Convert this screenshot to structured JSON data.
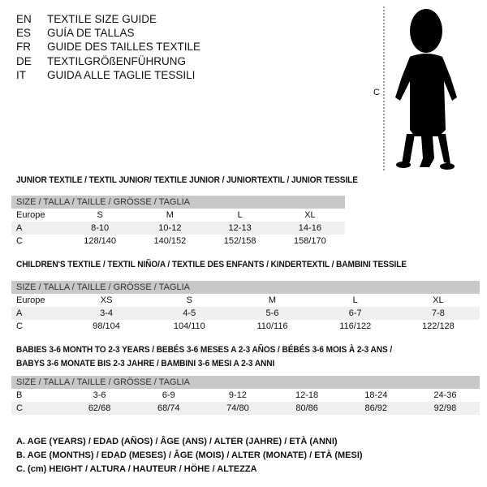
{
  "languages": [
    {
      "code": "EN",
      "title": "TEXTILE SIZE GUIDE"
    },
    {
      "code": "ES",
      "title": "GUÍA DE TALLAS"
    },
    {
      "code": "FR",
      "title": "GUIDE DES TAILLES TEXTILE"
    },
    {
      "code": "DE",
      "title": "TEXTILGRÖßENFÜHRUNG"
    },
    {
      "code": "IT",
      "title": "GUIDA ALLE TAGLIE TESSILI"
    }
  ],
  "figure": {
    "label": "C",
    "icon": "child-silhouette"
  },
  "size_header": "SIZE / TALLA / TAILLE / GRÖSSE / TAGLIA",
  "junior": {
    "title": "JUNIOR TEXTILE / TEXTIL JUNIOR/ TEXTILE JUNIOR / JUNIORTEXTIL / JUNIOR TESSILE",
    "rows": [
      {
        "label": "Europe",
        "cells": [
          "S",
          "M",
          "L",
          "XL"
        ]
      },
      {
        "label": "A",
        "cells": [
          "8-10",
          "10-12",
          "12-13",
          "14-16"
        ]
      },
      {
        "label": "C",
        "cells": [
          "128/140",
          "140/152",
          "152/158",
          "158/170"
        ]
      }
    ]
  },
  "children": {
    "title": "CHILDREN'S TEXTILE / TEXTIL NIÑO/A / TEXTILE DES ENFANTS / KINDERTEXTIL / BAMBINI TESSILE",
    "rows": [
      {
        "label": "Europe",
        "cells": [
          "XS",
          "S",
          "M",
          "L",
          "XL"
        ]
      },
      {
        "label": "A",
        "cells": [
          "3-4",
          "4-5",
          "5-6",
          "6-7",
          "7-8"
        ]
      },
      {
        "label": "C",
        "cells": [
          "98/104",
          "104/110",
          "110/116",
          "116/122",
          "122/128"
        ]
      }
    ]
  },
  "babies": {
    "title1": "BABIES 3-6 MONTH TO 2-3 YEARS / BEBÉS 3-6 MESES A 2-3 AÑOS / BÉBÉS 3-6 MOIS À 2-3 ANS /",
    "title2": "BABYS 3-6 MONATE BIS 2-3 JAHRE / BAMBINI 3-6 MESI A 2-3 ANNI",
    "rows": [
      {
        "label": "B",
        "cells": [
          "3-6",
          "6-9",
          "9-12",
          "12-18",
          "18-24",
          "24-36"
        ]
      },
      {
        "label": "C",
        "cells": [
          "62/68",
          "68/74",
          "74/80",
          "80/86",
          "86/92",
          "92/98"
        ]
      }
    ]
  },
  "legend": [
    "A. AGE (YEARS) / EDAD (AÑOS) / ÂGE (ANS) / ALTER (JAHRE) / ETÀ (ANNI)",
    "B. AGE (MONTHS) / EDAD (MESES) / ÂGE (MOIS) / ALTER (MONATE) / ETÀ (MESI)",
    "C. (cm) HEIGHT / ALTURA / HAUTEUR / HÖHE / ALTEZZA"
  ]
}
